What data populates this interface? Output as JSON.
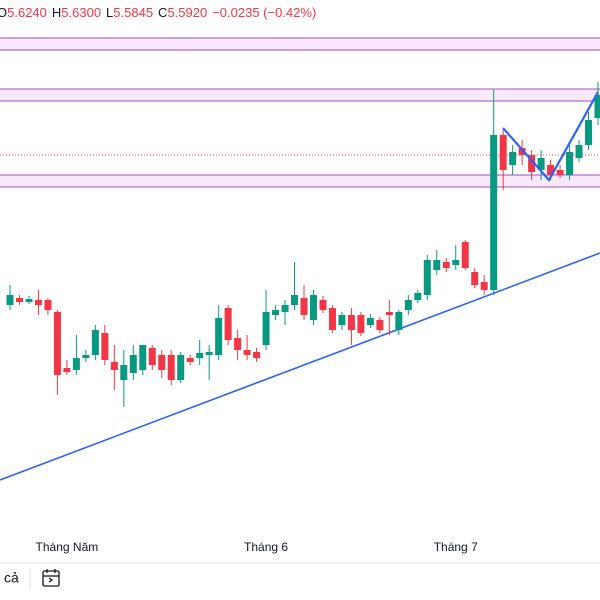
{
  "header": {
    "items": [
      {
        "label": "O",
        "value": "5.6240"
      },
      {
        "label": "H",
        "value": "5.6300"
      },
      {
        "label": "L",
        "value": "5.5845"
      },
      {
        "label": "C",
        "value": "5.5920"
      }
    ],
    "change": "−0.0235 (−0.42%)"
  },
  "toolbar": {
    "left_text": "cả"
  },
  "chart_data": {
    "type": "candlestick",
    "categories": [
      null,
      null,
      null,
      null,
      null,
      null,
      "Tháng Năm",
      null,
      null,
      null,
      null,
      null,
      null,
      null,
      null,
      null,
      null,
      null,
      null,
      null,
      null,
      null,
      null,
      null,
      null,
      null,
      null,
      "Tháng 6",
      null,
      null,
      null,
      null,
      null,
      null,
      null,
      null,
      null,
      null,
      null,
      null,
      null,
      null,
      null,
      null,
      null,
      null,
      null,
      "Tháng 7",
      null,
      null,
      null,
      null,
      null,
      null,
      null,
      null,
      null,
      null,
      null,
      null,
      null,
      null,
      null
    ],
    "ylim": [
      4.822,
      5.902
    ],
    "up_color": "#089981",
    "down_color": "#f23645",
    "open": [
      5.292,
      5.306,
      5.298,
      5.302,
      5.302,
      5.278,
      5.166,
      5.162,
      5.186,
      5.192,
      5.236,
      5.178,
      5.142,
      5.156,
      5.162,
      5.206,
      5.192,
      5.192,
      5.142,
      5.186,
      5.186,
      5.192,
      5.192,
      5.286,
      5.226,
      5.202,
      5.198,
      5.212,
      5.272,
      5.278,
      5.292,
      5.306,
      5.262,
      5.302,
      5.286,
      5.252,
      5.272,
      5.272,
      5.252,
      5.262,
      5.278,
      5.242,
      5.282,
      5.302,
      5.312,
      5.362,
      5.378,
      5.372,
      5.418,
      5.358,
      5.338,
      5.322,
      5.632,
      5.572,
      5.606,
      5.592,
      5.562,
      5.572,
      5.562,
      5.552,
      5.586,
      5.612,
      5.666
    ],
    "high": [
      5.332,
      5.312,
      5.31,
      5.322,
      5.306,
      5.282,
      5.182,
      5.232,
      5.202,
      5.252,
      5.252,
      5.212,
      5.202,
      5.212,
      5.212,
      5.212,
      5.202,
      5.202,
      5.198,
      5.192,
      5.222,
      5.212,
      5.292,
      5.292,
      5.242,
      5.232,
      5.206,
      5.322,
      5.292,
      5.302,
      5.378,
      5.332,
      5.322,
      5.31,
      5.292,
      5.278,
      5.286,
      5.278,
      5.274,
      5.268,
      5.302,
      5.282,
      5.312,
      5.322,
      5.392,
      5.402,
      5.386,
      5.412,
      5.422,
      5.366,
      5.352,
      5.722,
      5.642,
      5.612,
      5.622,
      5.602,
      5.602,
      5.582,
      5.572,
      5.612,
      5.622,
      5.678,
      5.738
    ],
    "low": [
      5.282,
      5.292,
      5.294,
      5.272,
      5.272,
      5.112,
      5.152,
      5.152,
      5.178,
      5.182,
      5.172,
      5.122,
      5.088,
      5.142,
      5.152,
      5.162,
      5.146,
      5.132,
      5.136,
      5.172,
      5.172,
      5.142,
      5.182,
      5.212,
      5.182,
      5.182,
      5.178,
      5.202,
      5.262,
      5.252,
      5.282,
      5.262,
      5.252,
      5.276,
      5.236,
      5.242,
      5.212,
      5.23,
      5.246,
      5.236,
      5.232,
      5.232,
      5.272,
      5.296,
      5.302,
      5.352,
      5.358,
      5.362,
      5.362,
      5.326,
      5.312,
      5.312,
      5.522,
      5.552,
      5.572,
      5.542,
      5.542,
      5.542,
      5.546,
      5.542,
      5.578,
      5.602,
      5.652
    ],
    "close": [
      5.312,
      5.298,
      5.304,
      5.292,
      5.282,
      5.152,
      5.158,
      5.186,
      5.192,
      5.242,
      5.182,
      5.162,
      5.172,
      5.192,
      5.212,
      5.172,
      5.162,
      5.142,
      5.192,
      5.178,
      5.196,
      5.198,
      5.266,
      5.222,
      5.202,
      5.192,
      5.186,
      5.278,
      5.282,
      5.292,
      5.312,
      5.272,
      5.312,
      5.282,
      5.242,
      5.272,
      5.242,
      5.236,
      5.266,
      5.242,
      5.272,
      5.278,
      5.302,
      5.316,
      5.382,
      5.382,
      5.366,
      5.382,
      5.366,
      5.332,
      5.322,
      5.632,
      5.562,
      5.598,
      5.592,
      5.558,
      5.586,
      5.552,
      5.552,
      5.598,
      5.612,
      5.662,
      5.712
    ]
  }
}
